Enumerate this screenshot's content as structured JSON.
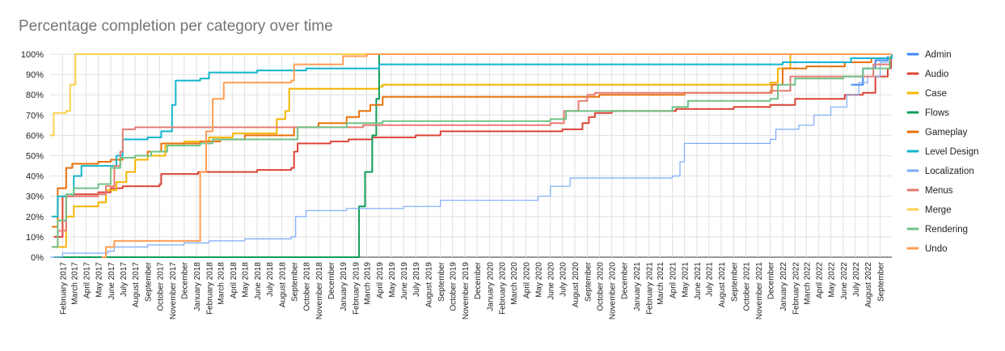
{
  "chart_data": {
    "type": "line",
    "title": "Percentage completion per category over time",
    "xlabel": "",
    "ylabel": "",
    "ylim": [
      0,
      100
    ],
    "y_tick_labels": [
      "0%",
      "10%",
      "20%",
      "30%",
      "40%",
      "50%",
      "60%",
      "70%",
      "80%",
      "90%",
      "100%"
    ],
    "x_range": [
      "2017-01-01",
      "2022-09-30"
    ],
    "x_tick_labels": [
      "February 2017",
      "March 2017",
      "April 2017",
      "May 2017",
      "June 2017",
      "July 2017",
      "August 2017",
      "September",
      "October 2017",
      "November 2017",
      "December",
      "January 2018",
      "February 2018",
      "March 2018",
      "April 2018",
      "May 2018",
      "June 2018",
      "July 2018",
      "August 2018",
      "September",
      "October 2018",
      "November 2018",
      "December",
      "January 2019",
      "February 2019",
      "March 2019",
      "April 2019",
      "May 2019",
      "June 2019",
      "July 2019",
      "August 2019",
      "September",
      "October 2019",
      "November 2019",
      "December",
      "January 2020",
      "February 2020",
      "March 2020",
      "April 2020",
      "May 2020",
      "June 2020",
      "July 2020",
      "August 2020",
      "September",
      "October 2020",
      "November 2020",
      "December",
      "January 2021",
      "February 2021",
      "March 2021",
      "April 2021",
      "May 2021",
      "June 2021",
      "July 2021",
      "August 2021",
      "September",
      "October 2021",
      "November 2021",
      "December",
      "January 2022",
      "February 2022",
      "March 2022",
      "April 2022",
      "May 2022",
      "June 2022",
      "July 2022",
      "August 2022",
      "September"
    ],
    "grid": true,
    "legend_position": "right",
    "series": [
      {
        "name": "Admin",
        "color": "#4285f4",
        "points": [
          [
            "2022-06-20",
            85
          ],
          [
            "2022-07-20",
            93
          ],
          [
            "2022-08-20",
            97
          ],
          [
            "2022-09-20",
            99
          ]
        ]
      },
      {
        "name": "Audio",
        "color": "#db4437",
        "points": [
          [
            "2017-01-10",
            10
          ],
          [
            "2017-02-01",
            30
          ],
          [
            "2017-03-01",
            31
          ],
          [
            "2017-05-01",
            32
          ],
          [
            "2017-06-01",
            34
          ],
          [
            "2017-07-01",
            35
          ],
          [
            "2017-10-01",
            36
          ],
          [
            "2017-10-05",
            41
          ],
          [
            "2017-12-01",
            41
          ],
          [
            "2018-01-05",
            42
          ],
          [
            "2018-06-01",
            43
          ],
          [
            "2018-08-25",
            44
          ],
          [
            "2018-09-01",
            52
          ],
          [
            "2018-09-10",
            56
          ],
          [
            "2018-12-01",
            57
          ],
          [
            "2019-01-15",
            58
          ],
          [
            "2019-03-15",
            59
          ],
          [
            "2019-07-01",
            60
          ],
          [
            "2019-09-01",
            62
          ],
          [
            "2020-07-01",
            63
          ],
          [
            "2020-08-20",
            66
          ],
          [
            "2020-09-05",
            69
          ],
          [
            "2020-09-20",
            71
          ],
          [
            "2020-11-01",
            72
          ],
          [
            "2021-04-10",
            73
          ],
          [
            "2021-09-01",
            74
          ],
          [
            "2021-12-01",
            75
          ],
          [
            "2022-02-01",
            78
          ],
          [
            "2022-06-05",
            80
          ],
          [
            "2022-07-20",
            81
          ],
          [
            "2022-08-20",
            89
          ],
          [
            "2022-09-20",
            93
          ],
          [
            "2022-09-28",
            99
          ]
        ]
      },
      {
        "name": "Case",
        "color": "#f4b400",
        "points": [
          [
            "2017-01-05",
            5
          ],
          [
            "2017-02-10",
            20
          ],
          [
            "2017-03-01",
            25
          ],
          [
            "2017-05-01",
            27
          ],
          [
            "2017-05-20",
            33
          ],
          [
            "2017-06-15",
            37
          ],
          [
            "2017-07-10",
            42
          ],
          [
            "2017-08-01",
            48
          ],
          [
            "2017-09-01",
            50
          ],
          [
            "2017-10-15",
            55
          ],
          [
            "2017-12-01",
            57
          ],
          [
            "2018-02-01",
            59
          ],
          [
            "2018-04-01",
            61
          ],
          [
            "2018-07-20",
            68
          ],
          [
            "2018-08-10",
            72
          ],
          [
            "2018-08-20",
            83
          ],
          [
            "2019-04-01",
            84
          ],
          [
            "2019-04-10",
            85
          ],
          [
            "2021-12-01",
            86
          ],
          [
            "2021-12-20",
            93
          ],
          [
            "2022-01-20",
            100
          ],
          [
            "2022-09-30",
            100
          ]
        ]
      },
      {
        "name": "Flows",
        "color": "#0f9d58",
        "points": [
          [
            "2017-01-10",
            0
          ],
          [
            "2019-01-20",
            0
          ],
          [
            "2019-02-10",
            25
          ],
          [
            "2019-02-25",
            42
          ],
          [
            "2019-03-15",
            60
          ],
          [
            "2019-03-25",
            78
          ],
          [
            "2019-04-01",
            100
          ],
          [
            "2022-09-30",
            100
          ]
        ]
      },
      {
        "name": "Gameplay",
        "color": "#e8710a",
        "points": [
          [
            "2017-01-05",
            15
          ],
          [
            "2017-01-20",
            34
          ],
          [
            "2017-02-10",
            44
          ],
          [
            "2017-02-25",
            46
          ],
          [
            "2017-05-01",
            47
          ],
          [
            "2017-06-01",
            48
          ],
          [
            "2017-07-01",
            49
          ],
          [
            "2017-08-01",
            50
          ],
          [
            "2017-09-01",
            52
          ],
          [
            "2017-10-05",
            56
          ],
          [
            "2018-01-10",
            57
          ],
          [
            "2018-03-01",
            58
          ],
          [
            "2018-05-01",
            60
          ],
          [
            "2018-09-01",
            64
          ],
          [
            "2018-11-01",
            66
          ],
          [
            "2019-01-10",
            69
          ],
          [
            "2019-02-10",
            72
          ],
          [
            "2019-03-10",
            75
          ],
          [
            "2019-04-10",
            79
          ],
          [
            "2020-10-01",
            80
          ],
          [
            "2021-05-01",
            81
          ],
          [
            "2021-12-05",
            85
          ],
          [
            "2022-01-01",
            93
          ],
          [
            "2022-03-01",
            94
          ],
          [
            "2022-06-05",
            96
          ],
          [
            "2022-08-10",
            98
          ],
          [
            "2022-09-30",
            100
          ]
        ]
      },
      {
        "name": "Level Design",
        "color": "#12b5cb",
        "points": [
          [
            "2017-01-05",
            20
          ],
          [
            "2017-01-20",
            30
          ],
          [
            "2017-03-01",
            40
          ],
          [
            "2017-03-20",
            45
          ],
          [
            "2017-06-15",
            50
          ],
          [
            "2017-07-01",
            58
          ],
          [
            "2017-09-01",
            59
          ],
          [
            "2017-10-05",
            62
          ],
          [
            "2017-11-01",
            75
          ],
          [
            "2017-11-10",
            87
          ],
          [
            "2018-01-10",
            88
          ],
          [
            "2018-02-01",
            91
          ],
          [
            "2018-06-01",
            92
          ],
          [
            "2018-10-01",
            93
          ],
          [
            "2019-04-01",
            95
          ],
          [
            "2021-12-01",
            95
          ],
          [
            "2022-01-01",
            96
          ],
          [
            "2022-06-20",
            98
          ],
          [
            "2022-09-30",
            100
          ]
        ]
      },
      {
        "name": "Localization",
        "color": "#7baaf7",
        "points": [
          [
            "2017-01-01",
            0
          ],
          [
            "2017-02-01",
            2
          ],
          [
            "2017-05-25",
            3
          ],
          [
            "2017-06-10",
            5
          ],
          [
            "2017-09-01",
            6
          ],
          [
            "2017-12-01",
            7
          ],
          [
            "2018-02-01",
            8
          ],
          [
            "2018-05-01",
            9
          ],
          [
            "2018-08-25",
            10
          ],
          [
            "2018-09-05",
            20
          ],
          [
            "2018-10-01",
            23
          ],
          [
            "2019-01-10",
            24
          ],
          [
            "2019-06-01",
            25
          ],
          [
            "2019-09-01",
            28
          ],
          [
            "2020-05-01",
            30
          ],
          [
            "2020-06-01",
            35
          ],
          [
            "2020-07-20",
            39
          ],
          [
            "2021-04-01",
            40
          ],
          [
            "2021-04-20",
            47
          ],
          [
            "2021-05-01",
            56
          ],
          [
            "2021-12-01",
            58
          ],
          [
            "2021-12-15",
            63
          ],
          [
            "2022-02-10",
            65
          ],
          [
            "2022-03-20",
            70
          ],
          [
            "2022-05-01",
            74
          ],
          [
            "2022-06-10",
            80
          ],
          [
            "2022-07-10",
            86
          ],
          [
            "2022-08-01",
            89
          ],
          [
            "2022-09-01",
            96
          ],
          [
            "2022-09-25",
            99
          ]
        ]
      },
      {
        "name": "Menus",
        "color": "#e67c73",
        "points": [
          [
            "2017-01-05",
            5
          ],
          [
            "2017-01-20",
            13
          ],
          [
            "2017-02-10",
            30
          ],
          [
            "2017-05-01",
            31
          ],
          [
            "2017-05-20",
            35
          ],
          [
            "2017-06-10",
            45
          ],
          [
            "2017-06-25",
            52
          ],
          [
            "2017-07-01",
            63
          ],
          [
            "2017-08-01",
            64
          ],
          [
            "2019-02-01",
            64
          ],
          [
            "2019-02-20",
            65
          ],
          [
            "2020-06-01",
            66
          ],
          [
            "2020-07-05",
            72
          ],
          [
            "2020-08-10",
            77
          ],
          [
            "2020-09-01",
            80
          ],
          [
            "2020-09-20",
            81
          ],
          [
            "2021-06-01",
            81
          ],
          [
            "2021-12-01",
            82
          ],
          [
            "2022-01-20",
            89
          ],
          [
            "2022-05-20",
            89
          ],
          [
            "2022-08-15",
            95
          ],
          [
            "2022-09-25",
            99
          ]
        ]
      },
      {
        "name": "Merge",
        "color": "#fcd04f",
        "points": [
          [
            "2017-01-01",
            60
          ],
          [
            "2017-01-10",
            71
          ],
          [
            "2017-02-10",
            72
          ],
          [
            "2017-02-20",
            85
          ],
          [
            "2017-03-05",
            100
          ],
          [
            "2022-09-30",
            100
          ]
        ]
      },
      {
        "name": "Rendering",
        "color": "#71c287",
        "points": [
          [
            "2017-01-05",
            5
          ],
          [
            "2017-01-20",
            18
          ],
          [
            "2017-02-10",
            31
          ],
          [
            "2017-03-01",
            34
          ],
          [
            "2017-05-01",
            36
          ],
          [
            "2017-06-01",
            44
          ],
          [
            "2017-06-25",
            49
          ],
          [
            "2017-08-01",
            50
          ],
          [
            "2017-09-10",
            52
          ],
          [
            "2017-10-20",
            55
          ],
          [
            "2018-01-10",
            56
          ],
          [
            "2018-02-10",
            58
          ],
          [
            "2018-09-10",
            64
          ],
          [
            "2019-01-10",
            66
          ],
          [
            "2019-04-10",
            67
          ],
          [
            "2020-06-01",
            68
          ],
          [
            "2020-07-10",
            72
          ],
          [
            "2021-04-01",
            74
          ],
          [
            "2021-05-10",
            77
          ],
          [
            "2021-12-01",
            78
          ],
          [
            "2021-12-20",
            85
          ],
          [
            "2022-02-01",
            88
          ],
          [
            "2022-06-01",
            89
          ],
          [
            "2022-07-20",
            93
          ],
          [
            "2022-09-25",
            99
          ]
        ]
      },
      {
        "name": "Undo",
        "color": "#ff9e55",
        "points": [
          [
            "2017-05-10",
            0
          ],
          [
            "2017-05-20",
            5
          ],
          [
            "2017-06-10",
            8
          ],
          [
            "2018-01-01",
            8
          ],
          [
            "2018-01-10",
            42
          ],
          [
            "2018-01-25",
            62
          ],
          [
            "2018-02-10",
            78
          ],
          [
            "2018-03-10",
            86
          ],
          [
            "2018-08-25",
            87
          ],
          [
            "2018-09-01",
            95
          ],
          [
            "2019-01-01",
            99
          ],
          [
            "2019-03-01",
            100
          ],
          [
            "2022-09-30",
            100
          ]
        ]
      }
    ]
  }
}
